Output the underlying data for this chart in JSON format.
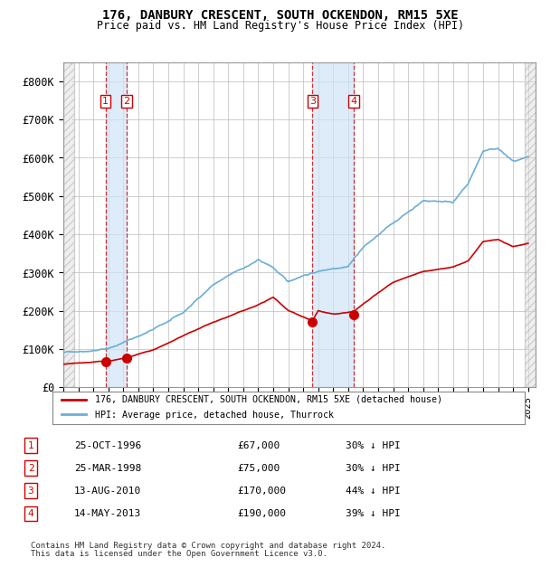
{
  "title": "176, DANBURY CRESCENT, SOUTH OCKENDON, RM15 5XE",
  "subtitle": "Price paid vs. HM Land Registry's House Price Index (HPI)",
  "footer1": "Contains HM Land Registry data © Crown copyright and database right 2024.",
  "footer2": "This data is licensed under the Open Government Licence v3.0.",
  "legend_red": "176, DANBURY CRESCENT, SOUTH OCKENDON, RM15 5XE (detached house)",
  "legend_blue": "HPI: Average price, detached house, Thurrock",
  "transactions": [
    {
      "id": 1,
      "date": "25-OCT-1996",
      "price": 67000,
      "pct": "30%",
      "year": 1996.82
    },
    {
      "id": 2,
      "date": "25-MAR-1998",
      "price": 75000,
      "pct": "30%",
      "year": 1998.23
    },
    {
      "id": 3,
      "date": "13-AUG-2010",
      "price": 170000,
      "pct": "44%",
      "year": 2010.62
    },
    {
      "id": 4,
      "date": "14-MAY-2013",
      "price": 190000,
      "pct": "39%",
      "year": 2013.37
    }
  ],
  "hpi_color": "#6baed6",
  "price_color": "#cc0000",
  "marker_color": "#cc0000",
  "vline_color": "#cc0000",
  "shade_color": "#d0e4f7",
  "hatch_color": "#c8c8c8",
  "grid_color": "#bbbbbb",
  "bg_color": "#ffffff",
  "ylim": [
    0,
    850000
  ],
  "xlim_start": 1994.0,
  "xlim_end": 2025.5,
  "yticks": [
    0,
    100000,
    200000,
    300000,
    400000,
    500000,
    600000,
    700000,
    800000
  ],
  "ylabel_fmt": [
    "£0",
    "£100K",
    "£200K",
    "£300K",
    "£400K",
    "£500K",
    "£600K",
    "£700K",
    "£800K"
  ]
}
